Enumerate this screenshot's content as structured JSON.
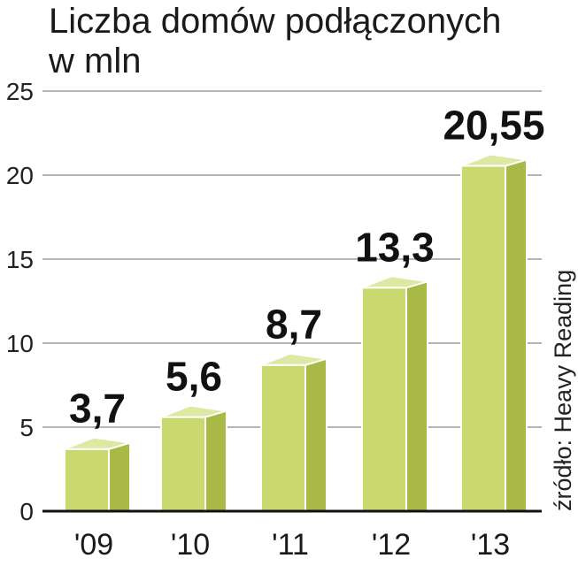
{
  "chart_data": {
    "type": "bar",
    "title": "Liczba domów podłączonych",
    "subtitle": "w mln",
    "categories": [
      "'09",
      "'10",
      "'11",
      "'12",
      "'13"
    ],
    "values": [
      3.7,
      5.6,
      8.7,
      13.3,
      20.55
    ],
    "value_labels": [
      "3,7",
      "5,6",
      "8,7",
      "13,3",
      "20,55"
    ],
    "yticks": [
      0,
      5,
      10,
      15,
      20,
      25
    ],
    "ylim": [
      0,
      25
    ],
    "grid": true,
    "source": "źródło: Heavy Reading",
    "colors": {
      "bar_front": "#cad870",
      "bar_side": "#a8b946",
      "bar_top": "#dde8a2",
      "grid": "#b5b5b5",
      "axis": "#111111"
    }
  }
}
